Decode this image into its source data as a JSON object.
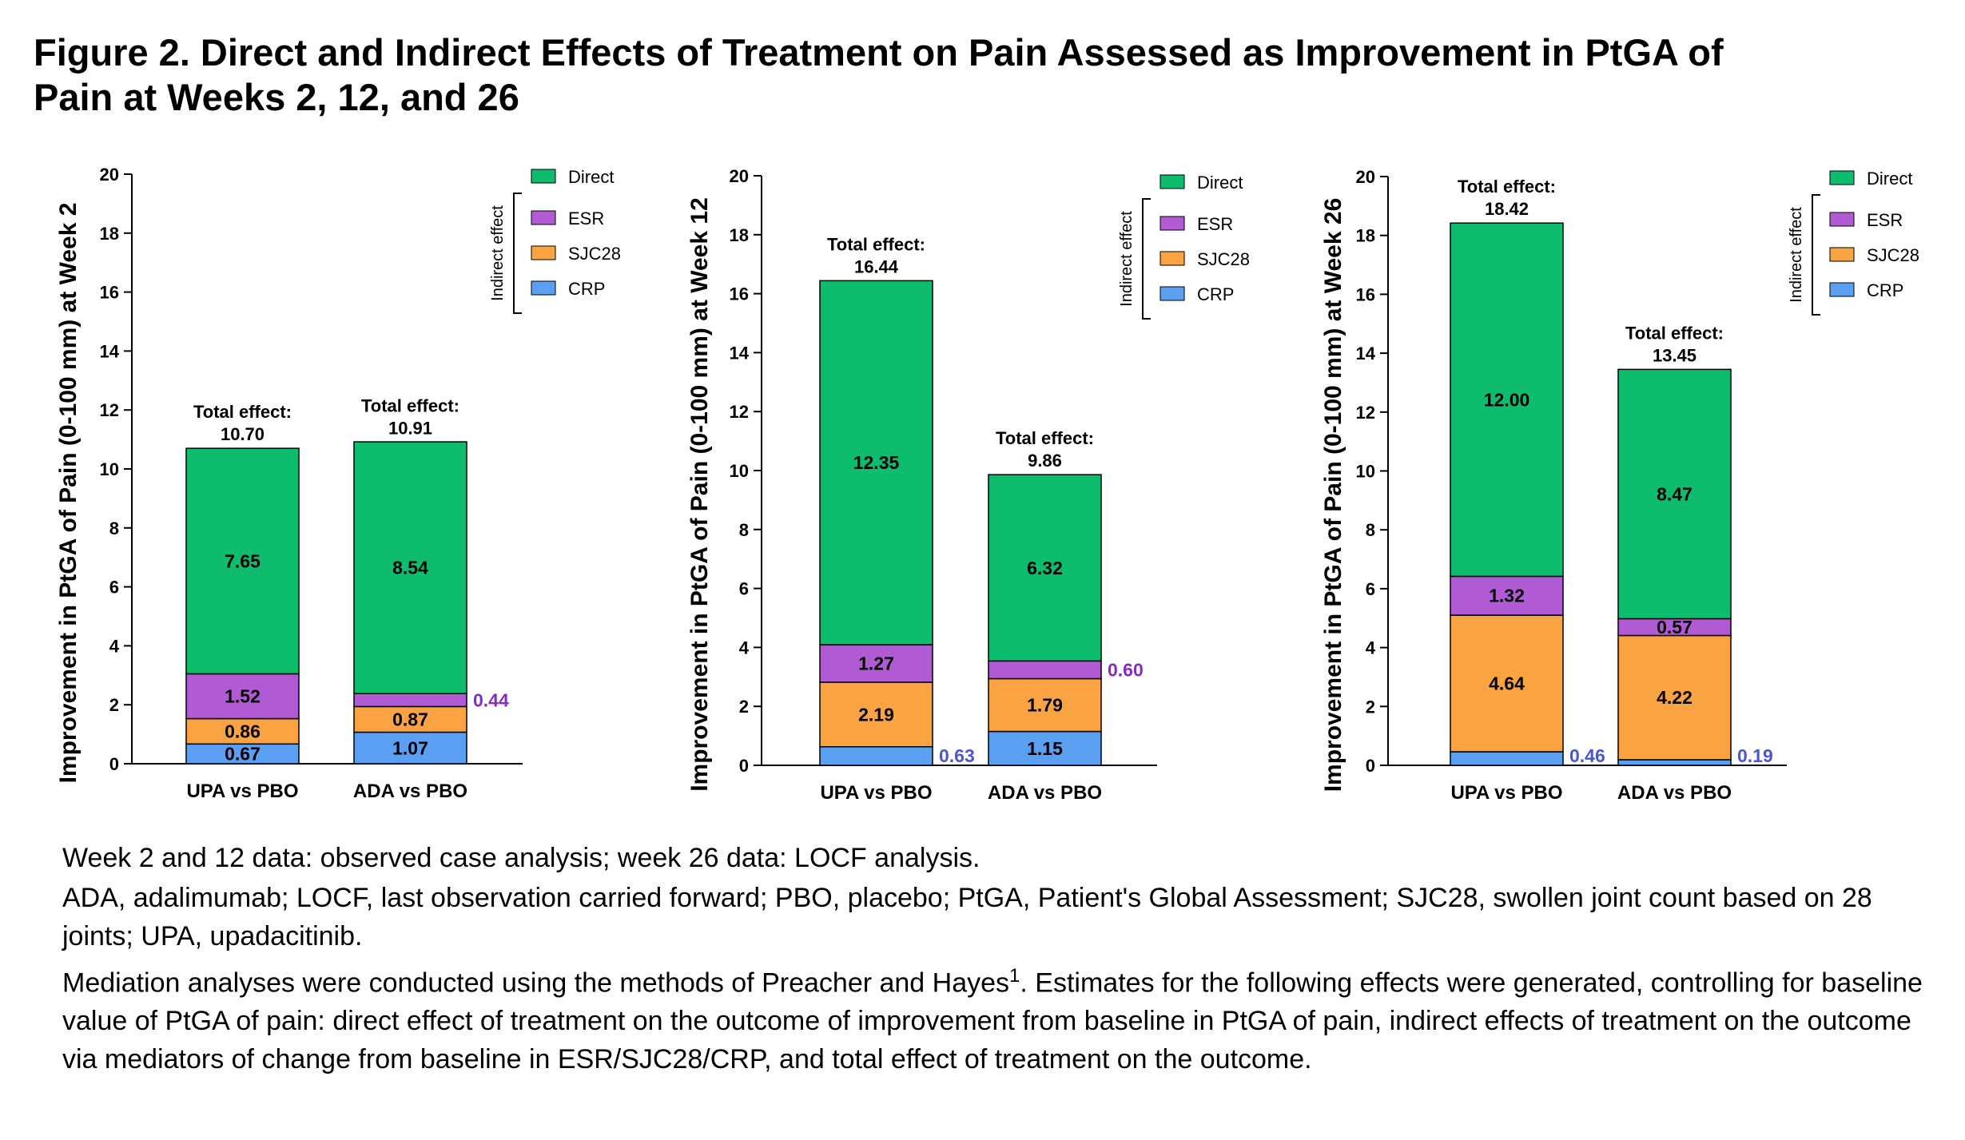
{
  "title_line1": "Figure 2. Direct and Indirect Effects of Treatment on Pain Assessed as Improvement in PtGA of",
  "title_line2": "Pain at Weeks 2, 12, and 26",
  "legend": {
    "items": [
      "Direct",
      "ESR",
      "SJC28",
      "CRP"
    ],
    "bracket_label": "Indirect effect"
  },
  "colors": {
    "Direct": "#0dbc6d",
    "ESR": "#b05ad3",
    "SJC28": "#f9a342",
    "CRP": "#5a9ff2",
    "ESR_label": "#8a2bbf",
    "CRP_label": "#4a55d6"
  },
  "total_label": "Total effect:",
  "chart_data": [
    {
      "type": "bar",
      "stacked": true,
      "ylabel": "Improvement in PtGA of Pain (0-100 mm) at Week 2",
      "ylim": [
        0,
        20
      ],
      "yticks": [
        0,
        2,
        4,
        6,
        8,
        10,
        12,
        14,
        16,
        18,
        20
      ],
      "categories": [
        "UPA vs PBO",
        "ADA vs PBO"
      ],
      "series": [
        {
          "name": "CRP",
          "values": [
            0.67,
            1.07
          ],
          "labels": [
            "0.67",
            "1.07"
          ],
          "outside": [
            false,
            false
          ]
        },
        {
          "name": "SJC28",
          "values": [
            0.86,
            0.87
          ],
          "labels": [
            "0.86",
            "0.87"
          ],
          "outside": [
            false,
            false
          ]
        },
        {
          "name": "ESR",
          "values": [
            1.52,
            0.44
          ],
          "labels": [
            "1.52",
            "0.44"
          ],
          "outside": [
            false,
            true
          ]
        },
        {
          "name": "Direct",
          "values": [
            7.65,
            8.54
          ],
          "labels": [
            "7.65",
            "8.54"
          ],
          "outside": [
            false,
            false
          ]
        }
      ],
      "totals": [
        10.7,
        10.91
      ],
      "total_labels": [
        "10.70",
        "10.91"
      ]
    },
    {
      "type": "bar",
      "stacked": true,
      "ylabel": "Improvement in PtGA of Pain (0-100 mm) at Week 12",
      "ylim": [
        0,
        20
      ],
      "yticks": [
        0,
        2,
        4,
        6,
        8,
        10,
        12,
        14,
        16,
        18,
        20
      ],
      "categories": [
        "UPA vs PBO",
        "ADA vs PBO"
      ],
      "series": [
        {
          "name": "CRP",
          "values": [
            0.63,
            1.15
          ],
          "labels": [
            "0.63",
            "1.15"
          ],
          "outside": [
            true,
            false
          ]
        },
        {
          "name": "SJC28",
          "values": [
            2.19,
            1.79
          ],
          "labels": [
            "2.19",
            "1.79"
          ],
          "outside": [
            false,
            false
          ]
        },
        {
          "name": "ESR",
          "values": [
            1.27,
            0.6
          ],
          "labels": [
            "1.27",
            "0.60"
          ],
          "outside": [
            false,
            true
          ]
        },
        {
          "name": "Direct",
          "values": [
            12.35,
            6.32
          ],
          "labels": [
            "12.35",
            "6.32"
          ],
          "outside": [
            false,
            false
          ]
        }
      ],
      "totals": [
        16.44,
        9.86
      ],
      "total_labels": [
        "16.44",
        "9.86"
      ]
    },
    {
      "type": "bar",
      "stacked": true,
      "ylabel": "Improvement in PtGA of Pain (0-100 mm) at Week 26",
      "ylim": [
        0,
        20
      ],
      "yticks": [
        0,
        2,
        4,
        6,
        8,
        10,
        12,
        14,
        16,
        18,
        20
      ],
      "categories": [
        "UPA vs PBO",
        "ADA vs PBO"
      ],
      "series": [
        {
          "name": "CRP",
          "values": [
            0.46,
            0.19
          ],
          "labels": [
            "0.46",
            "0.19"
          ],
          "outside": [
            true,
            true
          ]
        },
        {
          "name": "SJC28",
          "values": [
            4.64,
            4.22
          ],
          "labels": [
            "4.64",
            "4.22"
          ],
          "outside": [
            false,
            false
          ]
        },
        {
          "name": "ESR",
          "values": [
            1.32,
            0.57
          ],
          "labels": [
            "1.32",
            "0.57"
          ],
          "outside": [
            false,
            false
          ]
        },
        {
          "name": "Direct",
          "values": [
            12.0,
            8.47
          ],
          "labels": [
            "12.00",
            "8.47"
          ],
          "outside": [
            false,
            false
          ]
        }
      ],
      "totals": [
        18.42,
        13.45
      ],
      "total_labels": [
        "18.42",
        "13.45"
      ]
    }
  ],
  "footnotes": {
    "line1": "Week 2 and 12 data: observed case analysis; week 26 data: LOCF analysis.",
    "line2": "ADA, adalimumab; LOCF, last observation carried forward; PBO, placebo; PtGA, Patient's Global Assessment; SJC28, swollen joint count based on 28 joints; UPA, upadacitinib.",
    "line3_pre": "Mediation analyses were conducted using the methods of Preacher and Hayes",
    "line3_sup": "1",
    "line3_post": ". Estimates for the following effects were generated, controlling for baseline value of PtGA of pain: direct effect of treatment on the outcome of improvement from baseline in PtGA of pain, indirect effects of treatment on the outcome via mediators of change from baseline in ESR/SJC28/CRP, and total effect of treatment on the outcome."
  }
}
